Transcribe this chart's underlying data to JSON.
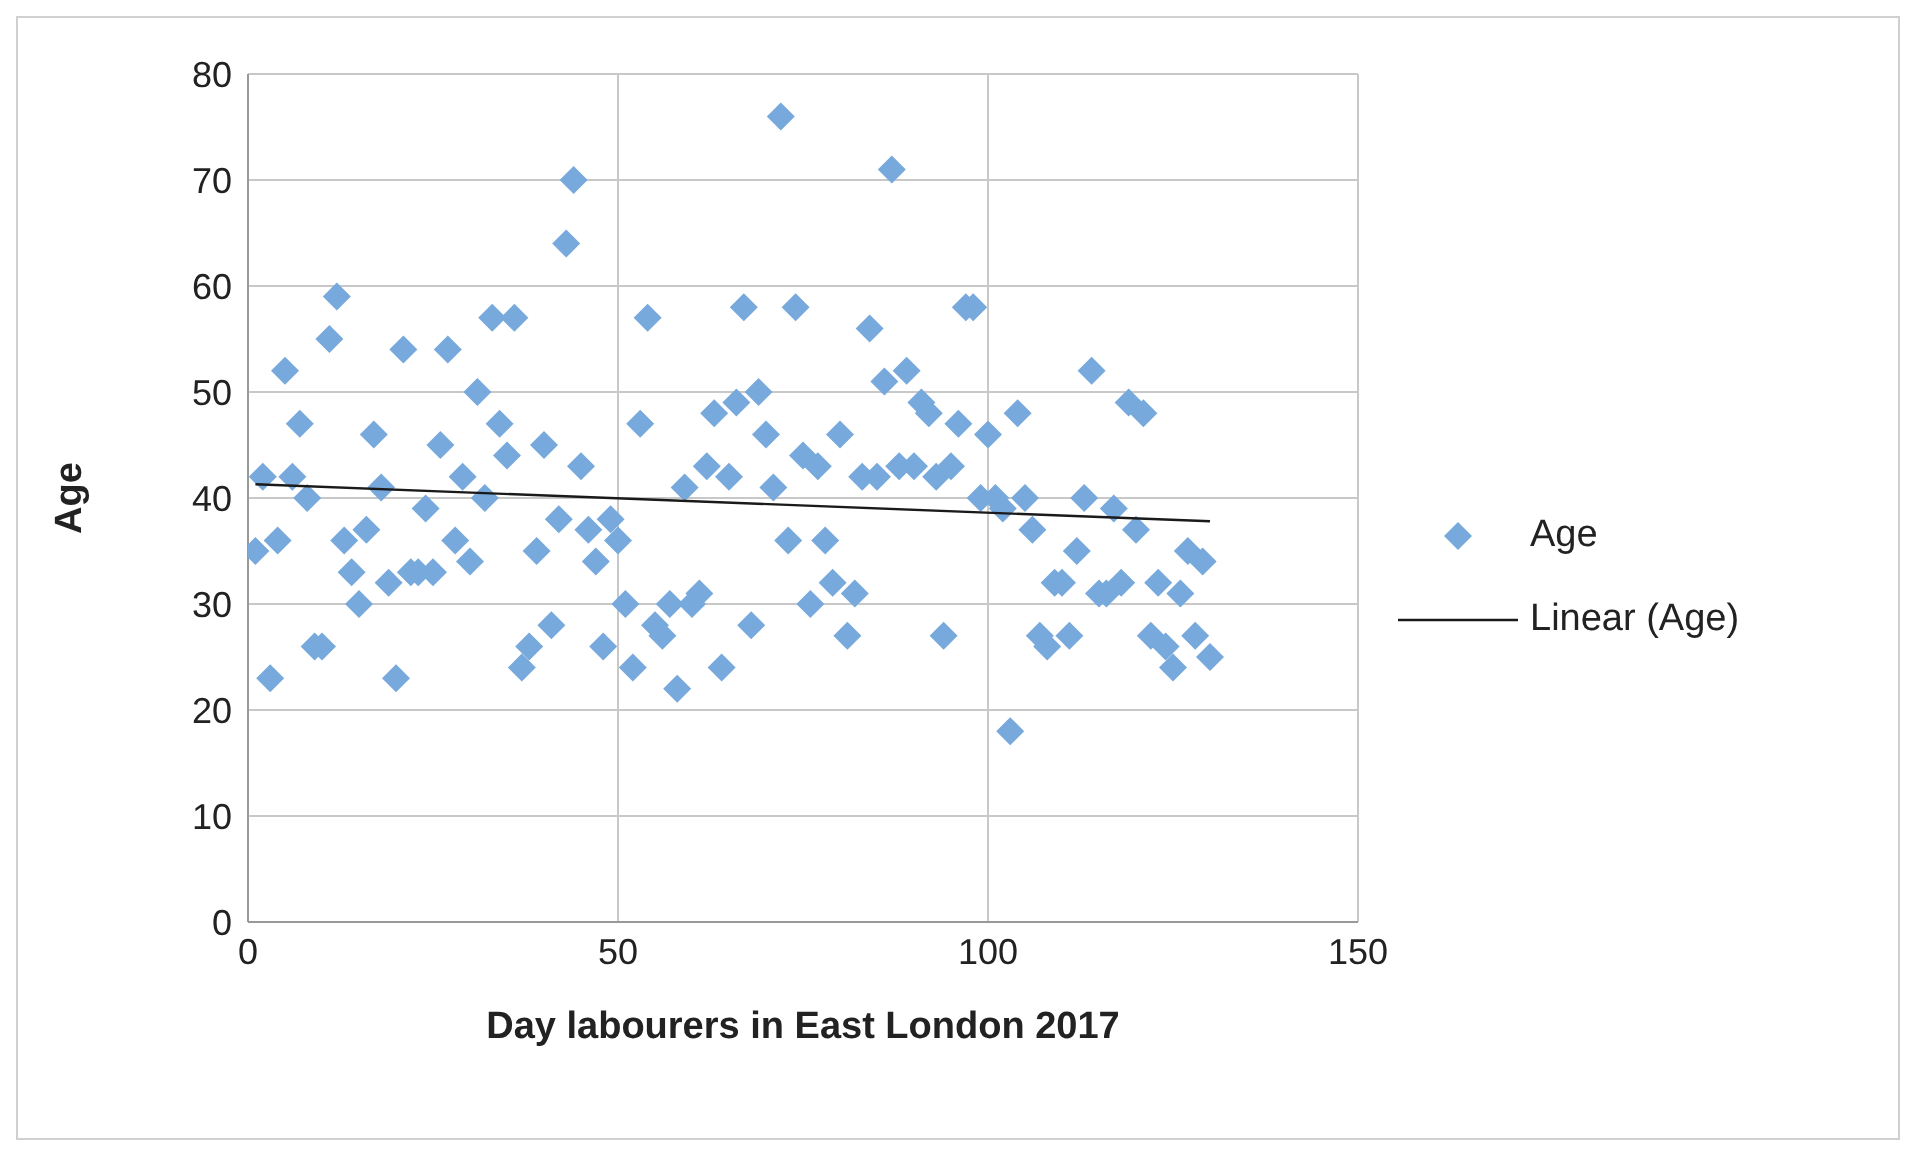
{
  "chart_data": {
    "type": "scatter",
    "xlabel": "Day labourers in East London 2017",
    "ylabel": "Age",
    "xlim": [
      0,
      150
    ],
    "xticks": [
      0,
      50,
      100,
      150
    ],
    "ylim": [
      0,
      80
    ],
    "yticks": [
      0,
      10,
      20,
      30,
      40,
      50,
      60,
      70,
      80
    ],
    "grid": true,
    "legend": "right",
    "marker": "diamond",
    "series": [
      {
        "name": "Age",
        "type": "scatter",
        "color": "#77a9dc",
        "x": [
          1,
          2,
          3,
          4,
          5,
          6,
          7,
          8,
          9,
          10,
          11,
          12,
          13,
          14,
          15,
          16,
          17,
          18,
          19,
          20,
          21,
          22,
          23,
          24,
          25,
          26,
          27,
          28,
          29,
          30,
          31,
          32,
          33,
          34,
          35,
          36,
          37,
          38,
          39,
          40,
          41,
          42,
          43,
          44,
          45,
          46,
          47,
          48,
          49,
          50,
          51,
          52,
          53,
          54,
          55,
          56,
          57,
          58,
          59,
          60,
          61,
          62,
          63,
          64,
          65,
          66,
          67,
          68,
          69,
          70,
          71,
          72,
          73,
          74,
          75,
          76,
          77,
          78,
          79,
          80,
          81,
          82,
          83,
          84,
          85,
          86,
          87,
          88,
          89,
          90,
          91,
          92,
          93,
          94,
          95,
          96,
          97,
          98,
          99,
          100,
          101,
          102,
          103,
          104,
          105,
          106,
          107,
          108,
          109,
          110,
          111,
          112,
          113,
          114,
          115,
          116,
          117,
          118,
          119,
          120,
          121,
          122,
          123,
          124,
          125,
          126,
          127,
          128,
          129,
          130
        ],
        "values": [
          35,
          42,
          23,
          36,
          52,
          42,
          47,
          40,
          26,
          26,
          55,
          59,
          36,
          33,
          30,
          37,
          46,
          41,
          32,
          23,
          54,
          33,
          33,
          39,
          33,
          45,
          54,
          36,
          42,
          34,
          50,
          40,
          57,
          47,
          44,
          57,
          24,
          26,
          35,
          45,
          28,
          38,
          64,
          70,
          43,
          37,
          34,
          26,
          38,
          36,
          30,
          24,
          47,
          57,
          28,
          27,
          30,
          22,
          41,
          30,
          31,
          43,
          48,
          24,
          42,
          49,
          58,
          28,
          50,
          46,
          41,
          76,
          36,
          58,
          44,
          30,
          43,
          36,
          32,
          46,
          27,
          31,
          42,
          56,
          42,
          51,
          71,
          43,
          52,
          43,
          49,
          48,
          42,
          27,
          43,
          47,
          58,
          58,
          40,
          46,
          40,
          39,
          18,
          48,
          40,
          37,
          27,
          26,
          32,
          32,
          27,
          35,
          40,
          52,
          31,
          31,
          39,
          32,
          49,
          37,
          48,
          27,
          32,
          26,
          24,
          31,
          35,
          27,
          34,
          25
        ]
      },
      {
        "name": "Linear (Age)",
        "type": "line",
        "color": "#1a1a1a",
        "x": [
          1,
          130
        ],
        "values": [
          41.3,
          37.8
        ],
        "marker": "none",
        "line_style": "solid"
      }
    ]
  }
}
